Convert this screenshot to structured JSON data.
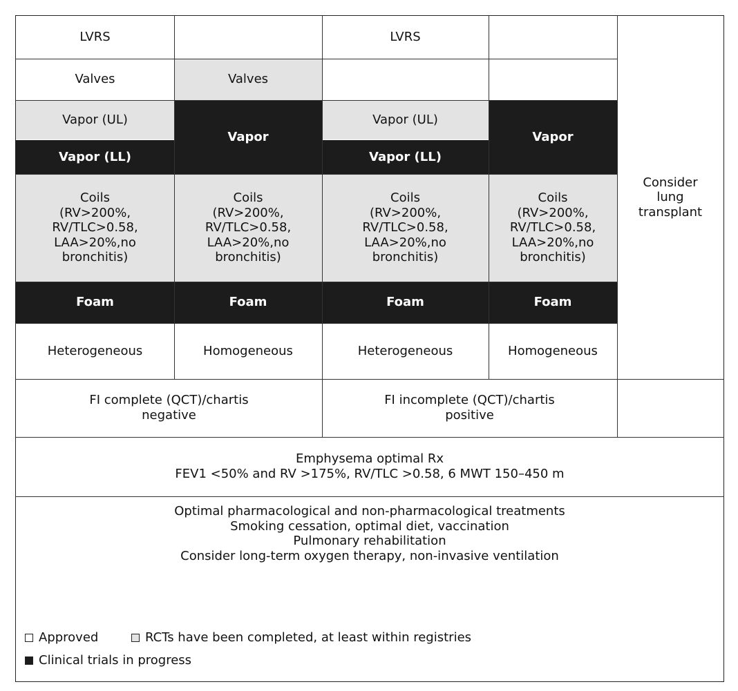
{
  "colors": {
    "approved": "#ffffff",
    "completed": "#e3e3e3",
    "in_progress": "#1c1c1c"
  },
  "grid": {
    "col1": {
      "lvrs": "LVRS",
      "valves": "Valves",
      "vapor_ul": "Vapor (UL)",
      "vapor_ll": "Vapor (LL)",
      "coils": "Coils\n(RV>200%,\nRV/TLC>0.58,\nLAA>20%,no\nbronchitis)",
      "foam": "Foam",
      "type": "Heterogeneous"
    },
    "col2": {
      "valves": "Valves",
      "vapor": "Vapor",
      "coils": "Coils\n(RV>200%,\nRV/TLC>0.58,\nLAA>20%,no\nbronchitis)",
      "foam": "Foam",
      "type": "Homogeneous"
    },
    "col3": {
      "lvrs": "LVRS",
      "vapor_ul": "Vapor (UL)",
      "vapor_ll": "Vapor (LL)",
      "coils": "Coils\n(RV>200%,\nRV/TLC>0.58,\nLAA>20%,no\nbronchitis)",
      "foam": "Foam",
      "type": "Heterogeneous"
    },
    "col4": {
      "vapor": "Vapor",
      "coils": "Coils\n(RV>200%,\nRV/TLC>0.58,\nLAA>20%,no\nbronchitis)",
      "foam": "Foam",
      "type": "Homogeneous"
    },
    "col5": {
      "transplant": "Consider\nlung\ntransplant"
    }
  },
  "fissure": {
    "complete": "FI complete (QCT)/chartis\nnegative",
    "incomplete": "FI incomplete (QCT)/chartis\npositive"
  },
  "emphysema": "Emphysema optimal Rx\nFEV1 <50% and RV >175%, RV/TLC >0.58, 6 MWT 150–450 m",
  "optimal": "Optimal pharmacological and non-pharmacological treatments\nSmoking cessation, optimal diet, vaccination\nPulmonary rehabilitation\nConsider long-term oxygen therapy, non-invasive ventilation",
  "legend": {
    "approved": "Approved",
    "completed": "RCTs have been completed, at least within registries",
    "in_progress": "Clinical trials in progress"
  }
}
